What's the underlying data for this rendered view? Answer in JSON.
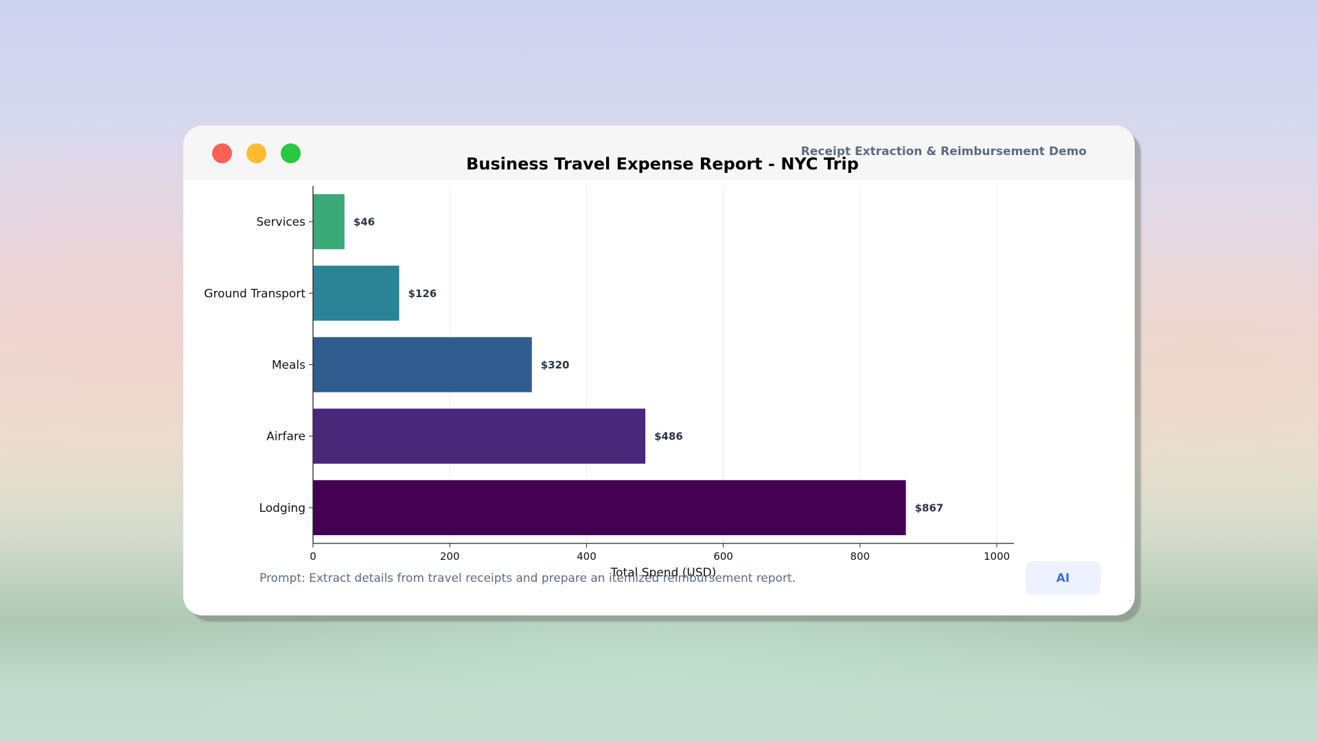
{
  "window": {
    "app_title": "Receipt Extraction & Reimbursement Demo",
    "prompt_text": "Prompt: Extract details from travel receipts and prepare an itemized reimbursement report.",
    "ai_badge": "AI"
  },
  "colors": {
    "traffic_red": "#ff5f57",
    "traffic_yellow": "#febc2e",
    "traffic_green": "#28c840",
    "accent_text": "#5b6b83",
    "ai_badge_text": "#3a6fd8"
  },
  "chart_data": {
    "type": "bar",
    "orientation": "horizontal",
    "title": "Business Travel Expense Report - NYC Trip",
    "xlabel": "Total Spend (USD)",
    "ylabel": "",
    "xlim": [
      0,
      1025
    ],
    "xticks": [
      0,
      200,
      400,
      600,
      800,
      1000
    ],
    "grid": "vertical",
    "categories": [
      "Lodging",
      "Airfare",
      "Meals",
      "Ground Transport",
      "Services"
    ],
    "values": [
      867,
      486,
      320,
      126,
      46
    ],
    "data_labels": [
      "$867",
      "$486",
      "$320",
      "$126",
      "$46"
    ],
    "bar_colors": [
      "#440154",
      "#482878",
      "#2f5b8e",
      "#2a8495",
      "#3aa877"
    ]
  }
}
